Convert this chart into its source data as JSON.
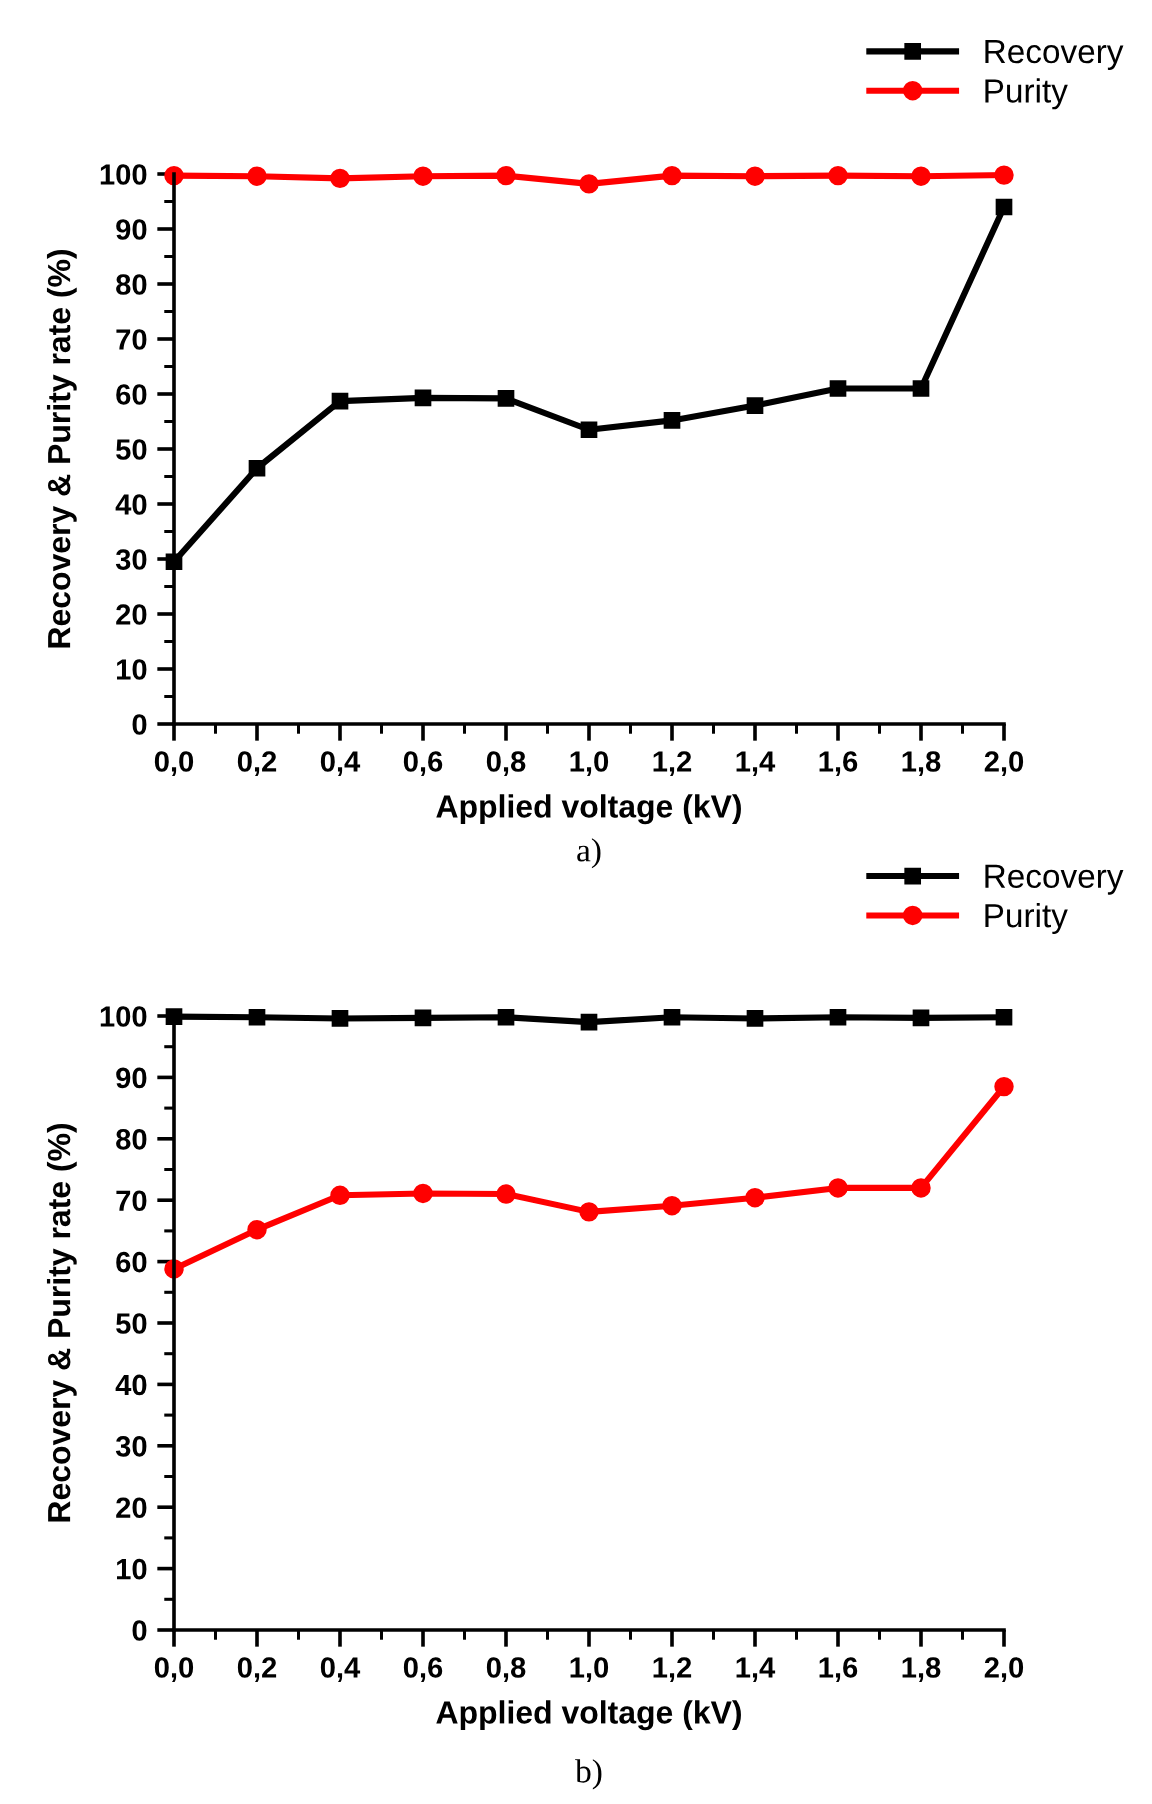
{
  "chart_data": [
    {
      "type": "line",
      "xlabel": "Applied voltage (kV)",
      "ylabel": "Recovery & Purity rate (%)",
      "annotations": [
        "a)"
      ],
      "x": [
        0.0,
        0.2,
        0.4,
        0.6,
        0.8,
        1.0,
        1.2,
        1.4,
        1.6,
        1.8,
        2.0
      ],
      "series": [
        {
          "name": "Recovery",
          "color": "#000000",
          "marker": "square",
          "values": [
            29.5,
            46.5,
            58.7,
            59.3,
            59.2,
            53.5,
            55.2,
            57.9,
            61.0,
            61.0,
            94.0
          ]
        },
        {
          "name": "Purity",
          "color": "#ff0000",
          "marker": "circle",
          "values": [
            99.7,
            99.6,
            99.2,
            99.6,
            99.7,
            98.2,
            99.7,
            99.6,
            99.7,
            99.6,
            99.8
          ]
        }
      ],
      "xlim": [
        0,
        2.0
      ],
      "ylim": [
        0,
        100
      ],
      "xticks": [
        {
          "value": 0,
          "label": "0,0"
        },
        {
          "value": 0.2,
          "label": "0,2"
        },
        {
          "value": 0.4,
          "label": "0,4"
        },
        {
          "value": 0.6,
          "label": "0,6"
        },
        {
          "value": 0.8,
          "label": "0,8"
        },
        {
          "value": 1.0,
          "label": "1,0"
        },
        {
          "value": 1.2,
          "label": "1,2"
        },
        {
          "value": 1.4,
          "label": "1,4"
        },
        {
          "value": 1.6,
          "label": "1,6"
        },
        {
          "value": 1.8,
          "label": "1,8"
        },
        {
          "value": 2.0,
          "label": "2,0"
        }
      ],
      "yticks": [
        0,
        10,
        20,
        30,
        40,
        50,
        60,
        70,
        80,
        90,
        100
      ],
      "legend": "top right",
      "grid": false,
      "line_style": "solid"
    },
    {
      "type": "line",
      "xlabel": "Applied voltage (kV)",
      "ylabel": "Recovery & Purity rate (%)",
      "annotations": [
        "b)"
      ],
      "x": [
        0.0,
        0.2,
        0.4,
        0.6,
        0.8,
        1.0,
        1.2,
        1.4,
        1.6,
        1.8,
        2.0
      ],
      "series": [
        {
          "name": "Recovery",
          "color": "#000000",
          "marker": "square",
          "values": [
            99.9,
            99.8,
            99.6,
            99.7,
            99.8,
            99.0,
            99.8,
            99.6,
            99.8,
            99.7,
            99.8
          ]
        },
        {
          "name": "Purity",
          "color": "#ff0000",
          "marker": "circle",
          "values": [
            58.8,
            65.2,
            70.8,
            71.1,
            71.0,
            68.1,
            69.1,
            70.4,
            72.0,
            72.0,
            88.5
          ]
        }
      ],
      "xlim": [
        0,
        2.0
      ],
      "ylim": [
        0,
        100
      ],
      "xticks": [
        {
          "value": 0,
          "label": "0,0"
        },
        {
          "value": 0.2,
          "label": "0,2"
        },
        {
          "value": 0.4,
          "label": "0,4"
        },
        {
          "value": 0.6,
          "label": "0,6"
        },
        {
          "value": 0.8,
          "label": "0,8"
        },
        {
          "value": 1.0,
          "label": "1,0"
        },
        {
          "value": 1.2,
          "label": "1,2"
        },
        {
          "value": 1.4,
          "label": "1,4"
        },
        {
          "value": 1.6,
          "label": "1,6"
        },
        {
          "value": 1.8,
          "label": "1,8"
        },
        {
          "value": 2.0,
          "label": "2,0"
        }
      ],
      "yticks": [
        0,
        10,
        20,
        30,
        40,
        50,
        60,
        70,
        80,
        90,
        100
      ],
      "legend": "top right",
      "grid": false,
      "line_style": "solid"
    }
  ]
}
